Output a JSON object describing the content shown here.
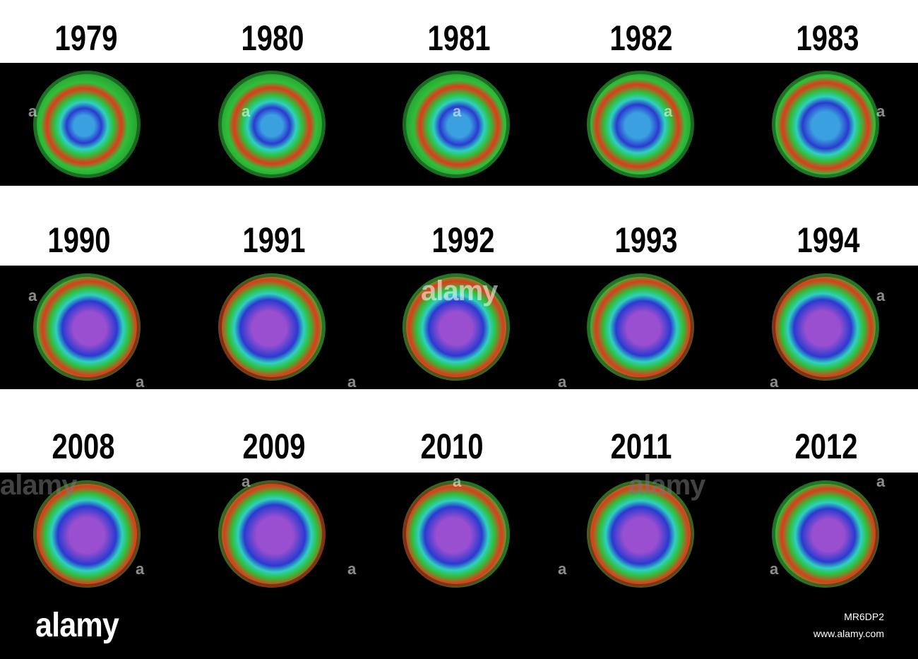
{
  "rows": [
    {
      "years": [
        "1979",
        "1980",
        "1981",
        "1982",
        "1983"
      ]
    },
    {
      "years": [
        "1990",
        "1991",
        "1992",
        "1993",
        "1994"
      ]
    },
    {
      "years": [
        "2008",
        "2009",
        "2010",
        "2011",
        "2012"
      ]
    }
  ],
  "colors": {
    "band": "#000000",
    "high_ozone": "#e03a1a",
    "mid_ozone": "#2fbf3a",
    "low_ozone": "#2a3ad0",
    "hole_core": "#9a4fd0"
  },
  "hole_severity": [
    0.25,
    0.3,
    0.35,
    0.45,
    0.55,
    0.8,
    0.85,
    0.8,
    0.8,
    0.85,
    0.9,
    0.95,
    0.85,
    0.85,
    0.75
  ],
  "watermark": {
    "small_mark": "a",
    "word": "alamy"
  },
  "logo": "alamy",
  "credit": {
    "image_id": "MR6DP2",
    "site": "www.alamy.com"
  }
}
